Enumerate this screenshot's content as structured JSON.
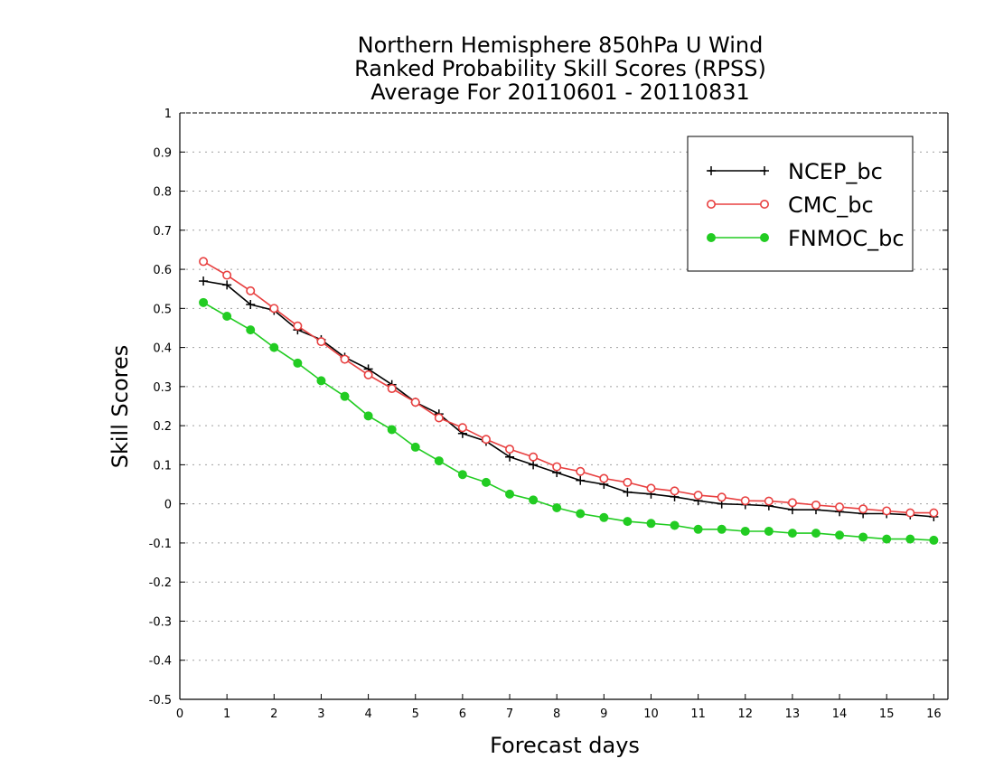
{
  "chart_data": {
    "type": "line",
    "title_lines": [
      "Northern Hemisphere 850hPa U Wind",
      "Ranked Probability Skill Scores (RPSS)",
      "Average For 20110601 - 20110831"
    ],
    "xlabel": "Forecast days",
    "ylabel": "Skill Scores",
    "xlim": [
      0,
      16.3
    ],
    "ylim": [
      -0.5,
      1
    ],
    "x_ticks": [
      0,
      1,
      2,
      3,
      4,
      5,
      6,
      7,
      8,
      9,
      10,
      11,
      12,
      13,
      14,
      15,
      16
    ],
    "y_ticks": [
      -0.5,
      -0.4,
      -0.3,
      -0.2,
      -0.1,
      0,
      0.1,
      0.2,
      0.3,
      0.4,
      0.5,
      0.6,
      0.7,
      0.8,
      0.9,
      1
    ],
    "y_tick_labels": [
      "-0.5",
      "-0.4",
      "-0.3",
      "-0.2",
      "-0.1",
      "0",
      "0.1",
      "0.2",
      "0.3",
      "0.4",
      "0.5",
      "0.6",
      "0.7",
      "0.8",
      "0.9",
      "1"
    ],
    "grid": "horizontal dotted",
    "legend_position": "top-right",
    "x": [
      0.5,
      1,
      1.5,
      2,
      2.5,
      3,
      3.5,
      4,
      4.5,
      5,
      5.5,
      6,
      6.5,
      7,
      7.5,
      8,
      8.5,
      9,
      9.5,
      10,
      10.5,
      11,
      11.5,
      12,
      12.5,
      13,
      13.5,
      14,
      14.5,
      15,
      15.5,
      16
    ],
    "series": [
      {
        "name": "NCEP_bc",
        "color": "#000000",
        "marker": "plus",
        "values": [
          0.57,
          0.56,
          0.51,
          0.495,
          0.445,
          0.42,
          0.375,
          0.345,
          0.305,
          0.26,
          0.23,
          0.18,
          0.16,
          0.12,
          0.1,
          0.08,
          0.06,
          0.05,
          0.03,
          0.025,
          0.018,
          0.008,
          0.0,
          -0.002,
          -0.005,
          -0.015,
          -0.015,
          -0.02,
          -0.025,
          -0.025,
          -0.028,
          -0.033
        ]
      },
      {
        "name": "CMC_bc",
        "color": "#e84040",
        "marker": "open-circle",
        "values": [
          0.62,
          0.585,
          0.545,
          0.5,
          0.455,
          0.415,
          0.37,
          0.33,
          0.295,
          0.26,
          0.22,
          0.195,
          0.165,
          0.14,
          0.12,
          0.095,
          0.083,
          0.065,
          0.055,
          0.04,
          0.033,
          0.022,
          0.017,
          0.008,
          0.007,
          0.003,
          -0.003,
          -0.008,
          -0.013,
          -0.018,
          -0.023,
          -0.023
        ]
      },
      {
        "name": "FNMOC_bc",
        "color": "#22cc22",
        "marker": "filled-circle",
        "values": [
          0.515,
          0.48,
          0.445,
          0.4,
          0.36,
          0.315,
          0.275,
          0.225,
          0.19,
          0.145,
          0.11,
          0.075,
          0.055,
          0.025,
          0.01,
          -0.01,
          -0.025,
          -0.035,
          -0.045,
          -0.05,
          -0.055,
          -0.065,
          -0.065,
          -0.07,
          -0.07,
          -0.075,
          -0.075,
          -0.08,
          -0.085,
          -0.09,
          -0.09,
          -0.093
        ]
      }
    ]
  }
}
